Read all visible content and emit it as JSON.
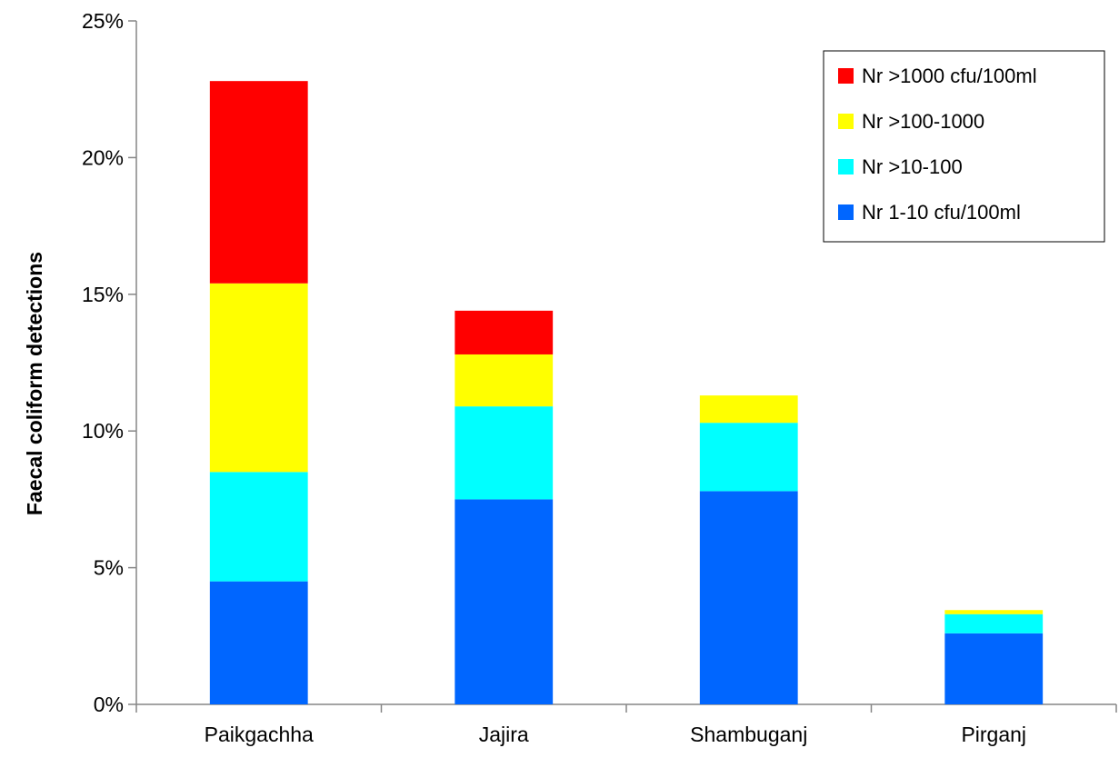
{
  "chart_data": {
    "type": "bar",
    "stacked": true,
    "categories": [
      "Paikgachha",
      "Jajira",
      "Shambuganj",
      "Pirganj"
    ],
    "series": [
      {
        "name": "Nr 1-10 cfu/100ml",
        "color": "#0066ff",
        "values": [
          4.5,
          7.5,
          7.8,
          2.6
        ]
      },
      {
        "name": "Nr >10-100",
        "color": "#00ffff",
        "values": [
          4.0,
          3.4,
          2.5,
          0.7
        ]
      },
      {
        "name": "Nr >100-1000",
        "color": "#ffff00",
        "values": [
          6.9,
          1.9,
          1.0,
          0.15
        ]
      },
      {
        "name": "Nr >1000 cfu/100ml",
        "color": "#ff0000",
        "values": [
          7.4,
          1.6,
          0,
          0
        ]
      }
    ],
    "title": "",
    "xlabel": "",
    "ylabel": "Faecal coliform detections",
    "ylim": [
      0,
      25
    ],
    "yticks": [
      "0%",
      "5%",
      "10%",
      "15%",
      "20%",
      "25%"
    ],
    "legend_position": "top-right",
    "grid": false
  }
}
